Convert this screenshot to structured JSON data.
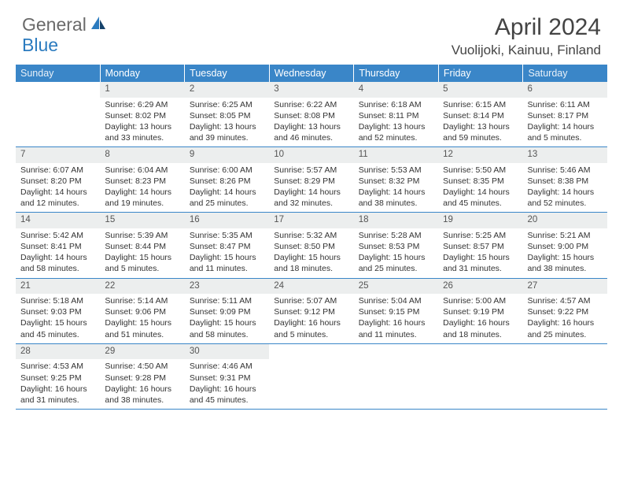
{
  "brand": {
    "text1": "General",
    "text2": "Blue"
  },
  "title": "April 2024",
  "location": "Vuolijoki, Kainuu, Finland",
  "colors": {
    "header_bg": "#3a86c8",
    "daynum_bg": "#eceeee",
    "rule": "#3a86c8",
    "logo_gray": "#6a6a6a",
    "logo_blue": "#2b7bbf"
  },
  "daysOfWeek": [
    "Sunday",
    "Monday",
    "Tuesday",
    "Wednesday",
    "Thursday",
    "Friday",
    "Saturday"
  ],
  "weeks": [
    [
      {
        "n": "",
        "lines": []
      },
      {
        "n": "1",
        "lines": [
          "Sunrise: 6:29 AM",
          "Sunset: 8:02 PM",
          "Daylight: 13 hours",
          "and 33 minutes."
        ]
      },
      {
        "n": "2",
        "lines": [
          "Sunrise: 6:25 AM",
          "Sunset: 8:05 PM",
          "Daylight: 13 hours",
          "and 39 minutes."
        ]
      },
      {
        "n": "3",
        "lines": [
          "Sunrise: 6:22 AM",
          "Sunset: 8:08 PM",
          "Daylight: 13 hours",
          "and 46 minutes."
        ]
      },
      {
        "n": "4",
        "lines": [
          "Sunrise: 6:18 AM",
          "Sunset: 8:11 PM",
          "Daylight: 13 hours",
          "and 52 minutes."
        ]
      },
      {
        "n": "5",
        "lines": [
          "Sunrise: 6:15 AM",
          "Sunset: 8:14 PM",
          "Daylight: 13 hours",
          "and 59 minutes."
        ]
      },
      {
        "n": "6",
        "lines": [
          "Sunrise: 6:11 AM",
          "Sunset: 8:17 PM",
          "Daylight: 14 hours",
          "and 5 minutes."
        ]
      }
    ],
    [
      {
        "n": "7",
        "lines": [
          "Sunrise: 6:07 AM",
          "Sunset: 8:20 PM",
          "Daylight: 14 hours",
          "and 12 minutes."
        ]
      },
      {
        "n": "8",
        "lines": [
          "Sunrise: 6:04 AM",
          "Sunset: 8:23 PM",
          "Daylight: 14 hours",
          "and 19 minutes."
        ]
      },
      {
        "n": "9",
        "lines": [
          "Sunrise: 6:00 AM",
          "Sunset: 8:26 PM",
          "Daylight: 14 hours",
          "and 25 minutes."
        ]
      },
      {
        "n": "10",
        "lines": [
          "Sunrise: 5:57 AM",
          "Sunset: 8:29 PM",
          "Daylight: 14 hours",
          "and 32 minutes."
        ]
      },
      {
        "n": "11",
        "lines": [
          "Sunrise: 5:53 AM",
          "Sunset: 8:32 PM",
          "Daylight: 14 hours",
          "and 38 minutes."
        ]
      },
      {
        "n": "12",
        "lines": [
          "Sunrise: 5:50 AM",
          "Sunset: 8:35 PM",
          "Daylight: 14 hours",
          "and 45 minutes."
        ]
      },
      {
        "n": "13",
        "lines": [
          "Sunrise: 5:46 AM",
          "Sunset: 8:38 PM",
          "Daylight: 14 hours",
          "and 52 minutes."
        ]
      }
    ],
    [
      {
        "n": "14",
        "lines": [
          "Sunrise: 5:42 AM",
          "Sunset: 8:41 PM",
          "Daylight: 14 hours",
          "and 58 minutes."
        ]
      },
      {
        "n": "15",
        "lines": [
          "Sunrise: 5:39 AM",
          "Sunset: 8:44 PM",
          "Daylight: 15 hours",
          "and 5 minutes."
        ]
      },
      {
        "n": "16",
        "lines": [
          "Sunrise: 5:35 AM",
          "Sunset: 8:47 PM",
          "Daylight: 15 hours",
          "and 11 minutes."
        ]
      },
      {
        "n": "17",
        "lines": [
          "Sunrise: 5:32 AM",
          "Sunset: 8:50 PM",
          "Daylight: 15 hours",
          "and 18 minutes."
        ]
      },
      {
        "n": "18",
        "lines": [
          "Sunrise: 5:28 AM",
          "Sunset: 8:53 PM",
          "Daylight: 15 hours",
          "and 25 minutes."
        ]
      },
      {
        "n": "19",
        "lines": [
          "Sunrise: 5:25 AM",
          "Sunset: 8:57 PM",
          "Daylight: 15 hours",
          "and 31 minutes."
        ]
      },
      {
        "n": "20",
        "lines": [
          "Sunrise: 5:21 AM",
          "Sunset: 9:00 PM",
          "Daylight: 15 hours",
          "and 38 minutes."
        ]
      }
    ],
    [
      {
        "n": "21",
        "lines": [
          "Sunrise: 5:18 AM",
          "Sunset: 9:03 PM",
          "Daylight: 15 hours",
          "and 45 minutes."
        ]
      },
      {
        "n": "22",
        "lines": [
          "Sunrise: 5:14 AM",
          "Sunset: 9:06 PM",
          "Daylight: 15 hours",
          "and 51 minutes."
        ]
      },
      {
        "n": "23",
        "lines": [
          "Sunrise: 5:11 AM",
          "Sunset: 9:09 PM",
          "Daylight: 15 hours",
          "and 58 minutes."
        ]
      },
      {
        "n": "24",
        "lines": [
          "Sunrise: 5:07 AM",
          "Sunset: 9:12 PM",
          "Daylight: 16 hours",
          "and 5 minutes."
        ]
      },
      {
        "n": "25",
        "lines": [
          "Sunrise: 5:04 AM",
          "Sunset: 9:15 PM",
          "Daylight: 16 hours",
          "and 11 minutes."
        ]
      },
      {
        "n": "26",
        "lines": [
          "Sunrise: 5:00 AM",
          "Sunset: 9:19 PM",
          "Daylight: 16 hours",
          "and 18 minutes."
        ]
      },
      {
        "n": "27",
        "lines": [
          "Sunrise: 4:57 AM",
          "Sunset: 9:22 PM",
          "Daylight: 16 hours",
          "and 25 minutes."
        ]
      }
    ],
    [
      {
        "n": "28",
        "lines": [
          "Sunrise: 4:53 AM",
          "Sunset: 9:25 PM",
          "Daylight: 16 hours",
          "and 31 minutes."
        ]
      },
      {
        "n": "29",
        "lines": [
          "Sunrise: 4:50 AM",
          "Sunset: 9:28 PM",
          "Daylight: 16 hours",
          "and 38 minutes."
        ]
      },
      {
        "n": "30",
        "lines": [
          "Sunrise: 4:46 AM",
          "Sunset: 9:31 PM",
          "Daylight: 16 hours",
          "and 45 minutes."
        ]
      },
      {
        "n": "",
        "lines": []
      },
      {
        "n": "",
        "lines": []
      },
      {
        "n": "",
        "lines": []
      },
      {
        "n": "",
        "lines": []
      }
    ]
  ]
}
